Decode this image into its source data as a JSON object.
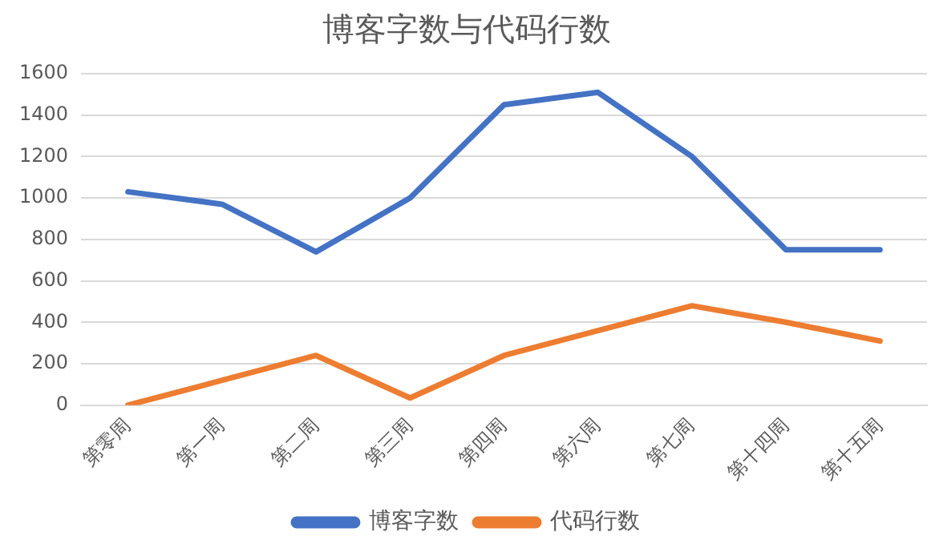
{
  "chart_data": {
    "type": "line",
    "title": "博客字数与代码行数",
    "categories": [
      "第零周",
      "第一周",
      "第二周",
      "第三周",
      "第四周",
      "第六周",
      "第七周",
      "第十四周",
      "第十五周"
    ],
    "series": [
      {
        "name": "博客字数",
        "color": "#4472c4",
        "values": [
          1030,
          970,
          740,
          1000,
          1450,
          1510,
          1200,
          750,
          750
        ]
      },
      {
        "name": "代码行数",
        "color": "#ed7d31",
        "values": [
          0,
          120,
          240,
          35,
          240,
          360,
          480,
          400,
          310
        ]
      }
    ],
    "ylim": [
      0,
      1600
    ],
    "yticks": [
      0,
      200,
      400,
      600,
      800,
      1000,
      1200,
      1400,
      1600
    ],
    "grid": "y",
    "legend": "bottom",
    "marker": "none",
    "line_style": "solid"
  }
}
